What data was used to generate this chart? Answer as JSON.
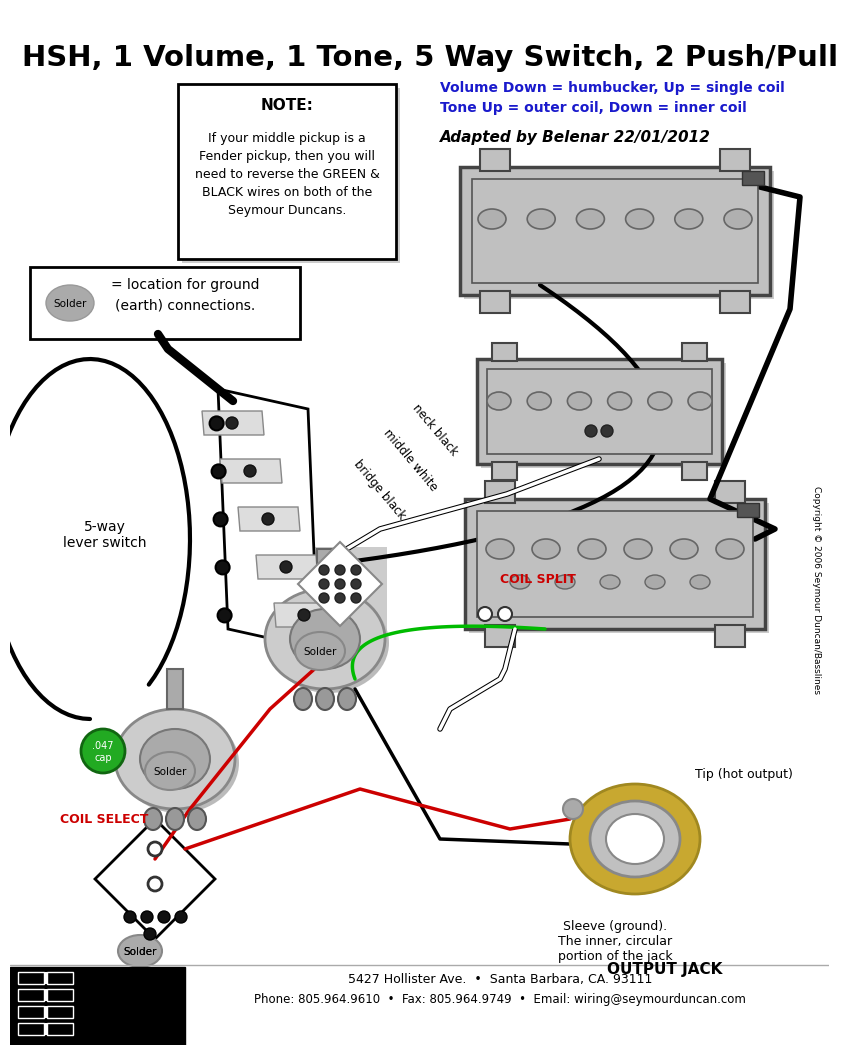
{
  "title": "HSH, 1 Volume, 1 Tone, 5 Way Switch, 2 Push/Pull",
  "subtitle1": "Volume Down = humbucker, Up = single coil",
  "subtitle2": "Tone Up = outer coil, Down = inner coil",
  "adapted": "Adapted by Belenar 22/01/2012",
  "note_title": "NOTE:",
  "note_body": "If your middle pickup is a\nFender pickup, then you will\nneed to reverse the GREEN &\nBLACK wires on both of the\nSeymour Duncans.",
  "footer_line1": "5427 Hollister Ave.  •  Santa Barbara, CA. 93111",
  "footer_line2": "Phone: 805.964.9610  •  Fax: 805.964.9749  •  Email: wiring@seymourduncan.com",
  "copyright": "Copyright © 2006 Seymour Duncan/Basslines",
  "bg_color": "#ffffff",
  "text_color": "#000000",
  "red_color": "#cc0000",
  "green_color": "#00bb00",
  "blue_color": "#1a1acc",
  "pickup_gray": "#c0c0c0",
  "pickup_dark": "#888888",
  "label_five_way": "5-way\nlever switch",
  "label_coil_split": "COIL SPLIT",
  "label_coil_select": "COIL SELECT",
  "label_neck_black": "neck black",
  "label_middle_white": "middle white",
  "label_bridge_black": "bridge black",
  "label_tip": "Tip (hot output)",
  "label_sleeve": "Sleeve (ground).\nThe inner, circular\nportion of the jack",
  "label_output": "OUTPUT JACK",
  "label_cap": ".047\ncap",
  "label_solder": "Solder"
}
